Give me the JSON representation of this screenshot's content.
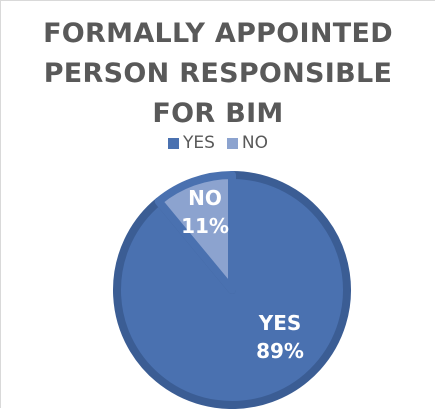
{
  "chart_data": {
    "type": "pie",
    "title_lines": [
      "FORMALLY APPOINTED",
      "PERSON RESPONSIBLE",
      "FOR BIM"
    ],
    "categories": [
      "YES",
      "NO"
    ],
    "values": [
      89,
      11
    ],
    "value_labels": [
      "89%",
      "11%"
    ],
    "colors": [
      "#4a71b0",
      "#8ca3cf"
    ],
    "edge_colors": [
      "#3b5d94",
      "#4a71b0"
    ],
    "legend_position": "top"
  }
}
